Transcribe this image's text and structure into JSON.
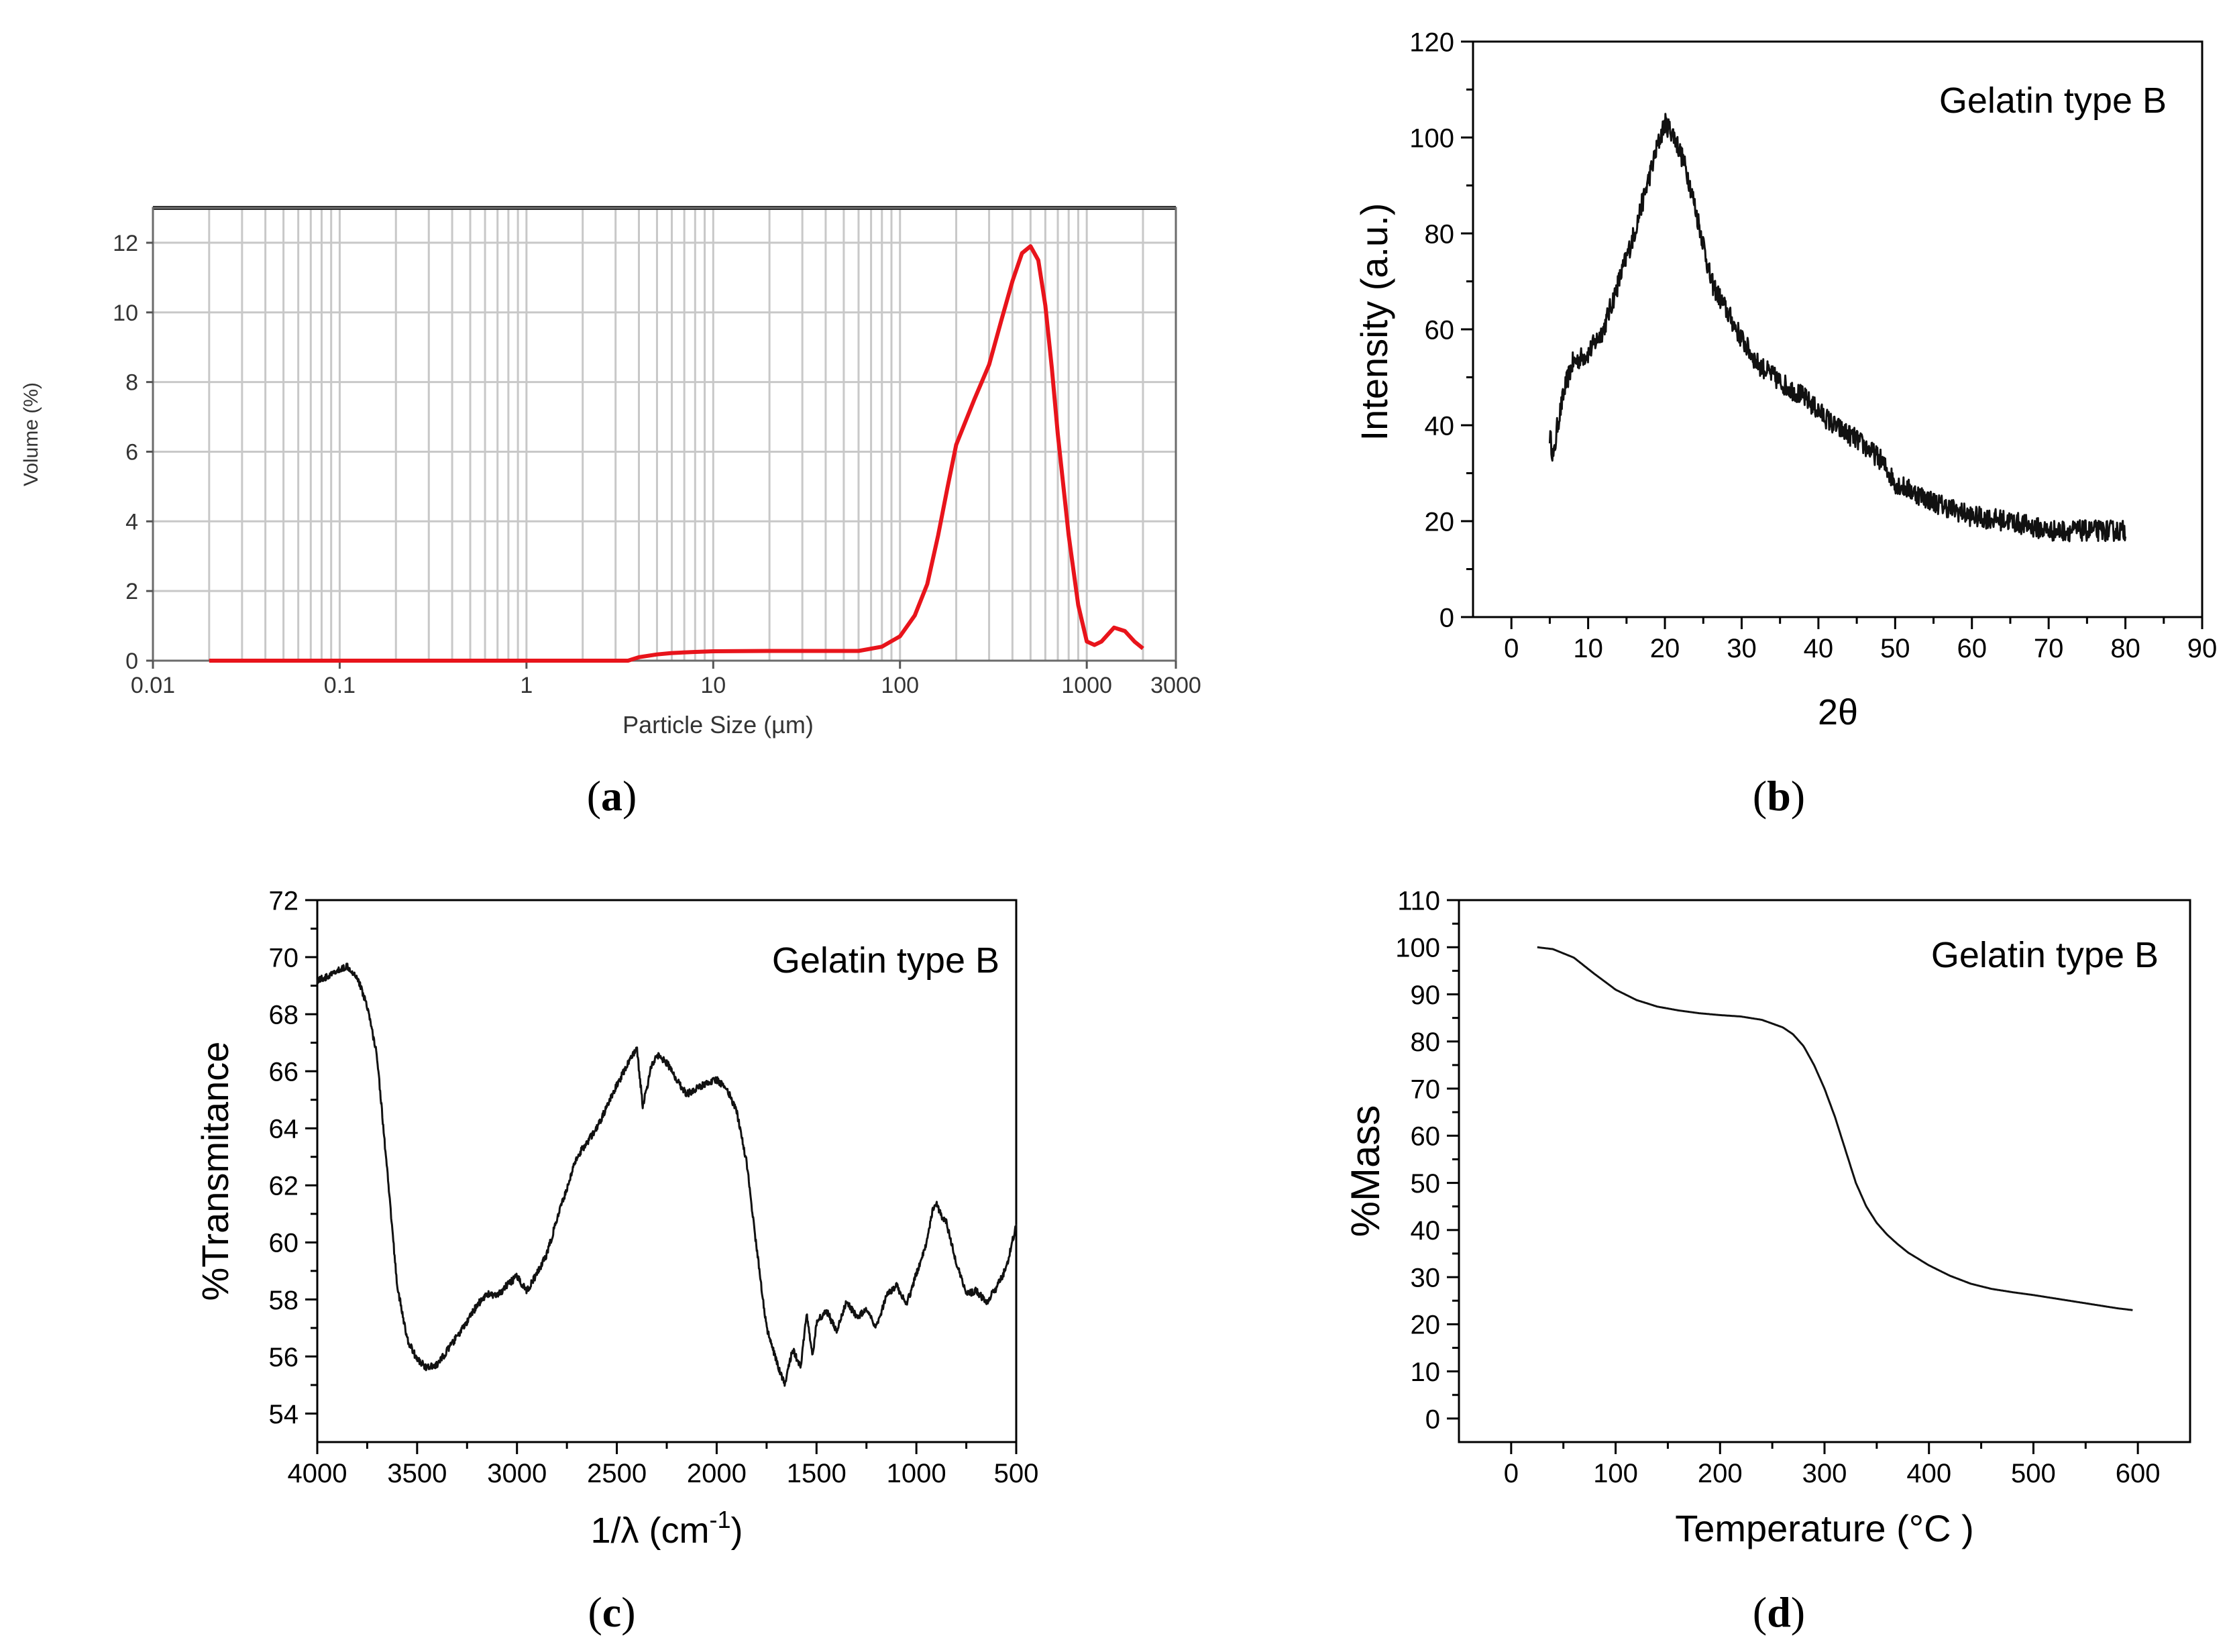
{
  "colors": {
    "curve_a": "#e8141b",
    "curve": "#111111",
    "axis": "#000000",
    "grid_a": "#c8c8c8"
  },
  "chart_data": [
    {
      "id": "a",
      "panel_label": "a",
      "type": "line",
      "title": "",
      "xlabel": "Particle Size (µm)",
      "ylabel": "Volume (%)",
      "x_scale": "log",
      "xlim": [
        0.01,
        3000
      ],
      "ylim": [
        0,
        13
      ],
      "xticks": [
        0.01,
        0.1,
        1,
        10,
        100,
        1000,
        3000
      ],
      "xtick_labels": [
        "0.01",
        "0.1",
        "1",
        "10",
        "100",
        "1000",
        "3000"
      ],
      "yticks": [
        0,
        2,
        4,
        6,
        8,
        10,
        12
      ],
      "ytick_labels": [
        "0",
        "2",
        "4",
        "6",
        "8",
        "10",
        "12"
      ],
      "grid": true,
      "series": [
        {
          "name": "Volume",
          "color": "#e8141b",
          "x": [
            0.02,
            0.1,
            1,
            3.5,
            4,
            5,
            6,
            8,
            10,
            20,
            40,
            60,
            80,
            100,
            120,
            140,
            160,
            180,
            200,
            250,
            300,
            350,
            400,
            450,
            500,
            550,
            600,
            650,
            700,
            800,
            900,
            1000,
            1100,
            1200,
            1400,
            1600,
            1800,
            2000
          ],
          "y": [
            0,
            0,
            0,
            0,
            0.1,
            0.18,
            0.22,
            0.25,
            0.27,
            0.28,
            0.28,
            0.28,
            0.4,
            0.7,
            1.3,
            2.2,
            3.6,
            5.0,
            6.2,
            7.5,
            8.5,
            9.8,
            10.9,
            11.7,
            11.9,
            11.5,
            10.2,
            8.4,
            6.5,
            3.6,
            1.6,
            0.55,
            0.45,
            0.55,
            0.95,
            0.85,
            0.55,
            0.35
          ]
        }
      ]
    },
    {
      "id": "b",
      "panel_label": "b",
      "type": "line",
      "title": "",
      "annotation": "Gelatin type B",
      "xlabel": "2θ",
      "ylabel": "Intensity (a.u.)",
      "xlim": [
        -5,
        90
      ],
      "ylim": [
        0,
        120
      ],
      "xticks": [
        0,
        10,
        20,
        30,
        40,
        50,
        60,
        70,
        80,
        90
      ],
      "xtick_labels": [
        "0",
        "10",
        "20",
        "30",
        "40",
        "50",
        "60",
        "70",
        "80",
        "90"
      ],
      "yticks": [
        0,
        20,
        40,
        60,
        80,
        100,
        120
      ],
      "ytick_labels": [
        "0",
        "20",
        "40",
        "60",
        "80",
        "100",
        "120"
      ],
      "grid": false,
      "noise": 2.2,
      "series": [
        {
          "name": "Gelatin type B",
          "color": "#111111",
          "x": [
            5,
            5.5,
            6,
            7,
            8,
            9,
            10,
            12,
            14,
            16,
            18,
            19,
            20,
            21,
            22,
            23,
            24,
            25,
            26,
            28,
            30,
            32,
            35,
            38,
            40,
            42,
            45,
            48,
            50,
            55,
            60,
            65,
            70,
            75,
            80
          ],
          "y": [
            38,
            33,
            40,
            48,
            53,
            54,
            55,
            60,
            70,
            80,
            92,
            98,
            103,
            101,
            97,
            92,
            85,
            78,
            70,
            64,
            58,
            53,
            49,
            46,
            43,
            40,
            37,
            33,
            28,
            24,
            21,
            20,
            18,
            18,
            18
          ]
        }
      ]
    },
    {
      "id": "c",
      "panel_label": "c",
      "type": "line",
      "title": "",
      "annotation": "Gelatin type B",
      "xlabel": "1/λ (cm",
      "xlabel_sup": "-1",
      "xlabel_tail": ")",
      "ylabel": "%Transmitance",
      "xlim": [
        4000,
        500
      ],
      "ylim": [
        53,
        72
      ],
      "xticks": [
        4000,
        3500,
        3000,
        2500,
        2000,
        1500,
        1000,
        500
      ],
      "xtick_labels": [
        "4000",
        "3500",
        "3000",
        "2500",
        "2000",
        "1500",
        "1000",
        "500"
      ],
      "yticks": [
        54,
        56,
        58,
        60,
        62,
        64,
        66,
        68,
        70,
        72
      ],
      "ytick_labels": [
        "54",
        "56",
        "58",
        "60",
        "62",
        "64",
        "66",
        "68",
        "70",
        "72"
      ],
      "grid": false,
      "noise": 0.12,
      "series": [
        {
          "name": "Gelatin type B",
          "color": "#111111",
          "x": [
            4000,
            3950,
            3900,
            3850,
            3800,
            3750,
            3700,
            3650,
            3600,
            3550,
            3500,
            3450,
            3400,
            3350,
            3300,
            3250,
            3200,
            3150,
            3100,
            3050,
            3000,
            2950,
            2900,
            2850,
            2800,
            2700,
            2600,
            2500,
            2450,
            2420,
            2400,
            2370,
            2350,
            2330,
            2300,
            2250,
            2200,
            2150,
            2100,
            2050,
            2000,
            1950,
            1900,
            1850,
            1800,
            1750,
            1700,
            1660,
            1640,
            1620,
            1580,
            1550,
            1520,
            1500,
            1450,
            1400,
            1350,
            1300,
            1250,
            1200,
            1150,
            1100,
            1050,
            1000,
            950,
            920,
            900,
            880,
            850,
            800,
            750,
            700,
            650,
            600,
            550,
            500
          ],
          "y": [
            69.2,
            69.3,
            69.5,
            69.7,
            69.3,
            68.3,
            66.5,
            62.5,
            58.5,
            56.6,
            55.9,
            55.6,
            55.7,
            56.2,
            56.7,
            57.2,
            57.8,
            58.2,
            58.1,
            58.5,
            58.8,
            58.3,
            58.9,
            59.6,
            60.8,
            63.0,
            64.0,
            65.5,
            66.2,
            66.6,
            66.8,
            64.8,
            65.4,
            66.1,
            66.6,
            66.3,
            65.7,
            65.2,
            65.4,
            65.6,
            65.7,
            65.4,
            64.6,
            62.8,
            59.8,
            57.0,
            55.8,
            55.0,
            55.6,
            56.3,
            55.6,
            57.5,
            56.0,
            57.2,
            57.6,
            56.9,
            57.9,
            57.4,
            57.6,
            57.0,
            58.1,
            58.5,
            57.8,
            58.9,
            60.0,
            61.1,
            61.4,
            61.0,
            60.7,
            59.3,
            58.2,
            58.3,
            57.9,
            58.4,
            59.1,
            60.6
          ]
        }
      ]
    },
    {
      "id": "d",
      "panel_label": "d",
      "type": "line",
      "title": "",
      "annotation": "Gelatin type B",
      "xlabel": "Temperature (°C )",
      "ylabel": "%Mass",
      "xlim": [
        -50,
        650
      ],
      "ylim": [
        -5,
        110
      ],
      "xticks": [
        0,
        100,
        200,
        300,
        400,
        500,
        600
      ],
      "xtick_labels": [
        "0",
        "100",
        "200",
        "300",
        "400",
        "500",
        "600"
      ],
      "yticks": [
        0,
        10,
        20,
        30,
        40,
        50,
        60,
        70,
        80,
        90,
        100,
        110
      ],
      "ytick_labels": [
        "0",
        "10",
        "20",
        "30",
        "40",
        "50",
        "60",
        "70",
        "80",
        "90",
        "100",
        "110"
      ],
      "grid": false,
      "noise": 0,
      "series": [
        {
          "name": "Gelatin type B",
          "color": "#111111",
          "x": [
            25,
            40,
            60,
            80,
            100,
            120,
            140,
            160,
            180,
            200,
            220,
            240,
            260,
            270,
            280,
            290,
            300,
            310,
            320,
            330,
            340,
            350,
            360,
            370,
            380,
            400,
            420,
            440,
            460,
            480,
            500,
            520,
            540,
            560,
            580,
            595
          ],
          "y": [
            100,
            99.6,
            97.8,
            94.3,
            91.0,
            88.8,
            87.4,
            86.6,
            86.0,
            85.6,
            85.3,
            84.6,
            83.0,
            81.5,
            79.0,
            75.0,
            70.0,
            64.0,
            57.0,
            50.0,
            45.0,
            41.5,
            39.0,
            37.0,
            35.2,
            32.5,
            30.3,
            28.6,
            27.5,
            26.8,
            26.2,
            25.5,
            24.8,
            24.1,
            23.4,
            23.0
          ]
        }
      ]
    }
  ]
}
